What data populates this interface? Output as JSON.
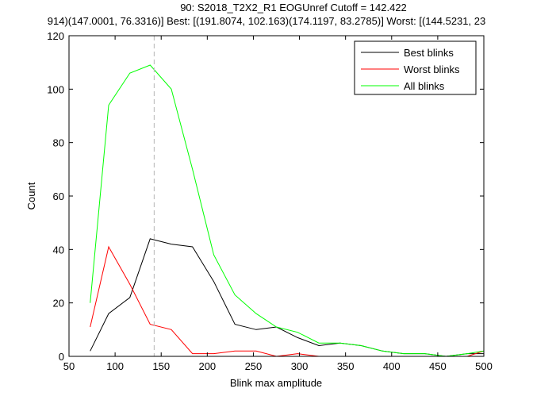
{
  "chart_data": {
    "type": "line",
    "title_line1": "90: S2018_T2X2_R1 EOGUnref Cutoff = 142.422",
    "title_line2": "914)(147.0001, 76.3316)] Best: [(191.8074, 102.163)(174.1197, 83.2785)] Worst: [(144.5231, 23",
    "xlabel": "Blink max amplitude",
    "ylabel": "Count",
    "xlim": [
      50,
      500
    ],
    "ylim": [
      0,
      120
    ],
    "xticks": [
      50,
      100,
      150,
      200,
      250,
      300,
      350,
      400,
      450,
      500
    ],
    "yticks": [
      0,
      20,
      40,
      60,
      80,
      100,
      120
    ],
    "grid": false,
    "legend_position": "top-right",
    "cutoff": 142.422,
    "x": [
      73,
      93,
      116,
      138,
      161,
      184,
      207,
      230,
      253,
      275,
      298,
      321,
      344,
      367,
      390,
      413,
      436,
      459,
      482,
      500
    ],
    "series": [
      {
        "name": "Best blinks",
        "color": "#000000",
        "values": [
          2,
          16,
          22,
          44,
          42,
          41,
          28,
          12,
          10,
          11,
          7,
          4,
          5,
          4,
          2,
          1,
          1,
          0,
          1,
          1
        ]
      },
      {
        "name": "Worst blinks",
        "color": "#ff0000",
        "values": [
          11,
          41,
          27,
          12,
          10,
          1,
          1,
          2,
          2,
          0,
          1,
          0,
          0,
          0,
          0,
          0,
          0,
          0,
          0,
          2
        ]
      },
      {
        "name": "All blinks",
        "color": "#00ff00",
        "values": [
          20,
          94,
          106,
          109,
          100,
          70,
          38,
          23,
          16,
          11,
          9,
          5,
          5,
          4,
          2,
          1,
          1,
          0,
          1,
          2
        ]
      }
    ]
  }
}
